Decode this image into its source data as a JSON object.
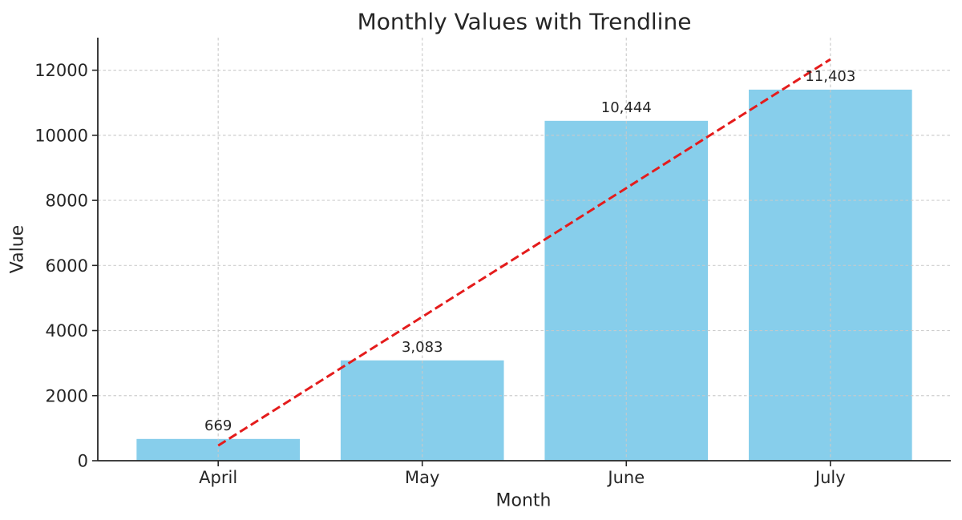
{
  "chart_data": {
    "type": "bar",
    "title": "Monthly Values with Trendline",
    "xlabel": "Month",
    "ylabel": "Value",
    "categories": [
      "April",
      "May",
      "June",
      "July"
    ],
    "values": [
      669,
      3083,
      10444,
      11403
    ],
    "value_labels": [
      "669",
      "3,083",
      "10,444",
      "11,403"
    ],
    "yticks": [
      0,
      2000,
      4000,
      6000,
      8000,
      10000,
      12000
    ],
    "ytick_labels": [
      "0",
      "2000",
      "4000",
      "6000",
      "8000",
      "10000",
      "12000"
    ],
    "ylim": [
      0,
      13000
    ],
    "xlim": [
      -0.59,
      3.59
    ],
    "bar_width": 0.8,
    "grid": true,
    "legend": "none",
    "bar_color": "#87CEEB",
    "trendline": {
      "style": "dashed",
      "color": "#e41c1c",
      "x": [
        0,
        3
      ],
      "y": [
        465,
        12334
      ]
    },
    "colors": {
      "background": "#ffffff",
      "text": "#262626",
      "axis": "#262626",
      "grid": "#c9c9c9"
    }
  }
}
